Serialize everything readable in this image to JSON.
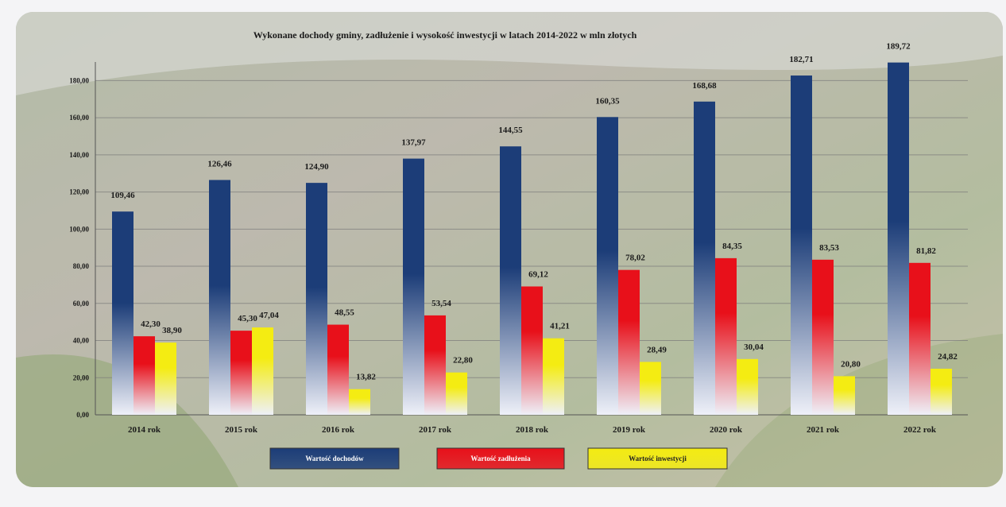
{
  "chart_data": {
    "type": "bar",
    "title": "Wykonane dochody gminy, zadłużenie i wysokość inwestycji w latach 2014-2022 w mln złotych",
    "categories": [
      "2014 rok",
      "2015 rok",
      "2016 rok",
      "2017 rok",
      "2018 rok",
      "2019 rok",
      "2020 rok",
      "2021 rok",
      "2022 rok"
    ],
    "series": [
      {
        "name": "Wartość dochodów",
        "color": "#1c3d78",
        "values": [
          109.46,
          126.46,
          124.9,
          137.97,
          144.55,
          160.35,
          168.68,
          182.71,
          189.72
        ],
        "value_labels": [
          "109,46",
          "126,46",
          "124,90",
          "137,97",
          "144,55",
          "160,35",
          "168,68",
          "182,71",
          "189,72"
        ]
      },
      {
        "name": "Wartość zadłużenia",
        "color": "#e8101a",
        "values": [
          42.3,
          45.3,
          48.55,
          53.54,
          69.12,
          78.02,
          84.35,
          83.53,
          81.82
        ],
        "value_labels": [
          "42,30",
          "45,30",
          "48,55",
          "53,54",
          "69,12",
          "78,02",
          "84,35",
          "83,53",
          "81,82"
        ]
      },
      {
        "name": "Wartość inwestycji",
        "color": "#f4ec12",
        "values": [
          38.9,
          47.04,
          13.82,
          22.8,
          41.21,
          28.49,
          30.04,
          20.8,
          24.82
        ],
        "value_labels": [
          "38,90",
          "47,04",
          "13,82",
          "22,80",
          "41,21",
          "28,49",
          "30,04",
          "20,80",
          "24,82"
        ]
      }
    ],
    "ylim": [
      0,
      190
    ],
    "yticks": [
      {
        "value": 0,
        "label": "0,00"
      },
      {
        "value": 20,
        "label": "20,00"
      },
      {
        "value": 40,
        "label": "40,00"
      },
      {
        "value": 60,
        "label": "60,00"
      },
      {
        "value": 80,
        "label": "80,00"
      },
      {
        "value": 100,
        "label": "100,00"
      },
      {
        "value": 120,
        "label": "120,00"
      },
      {
        "value": 140,
        "label": "140,00"
      },
      {
        "value": 160,
        "label": "160,00"
      },
      {
        "value": 180,
        "label": "180,00"
      }
    ],
    "grid": true
  }
}
